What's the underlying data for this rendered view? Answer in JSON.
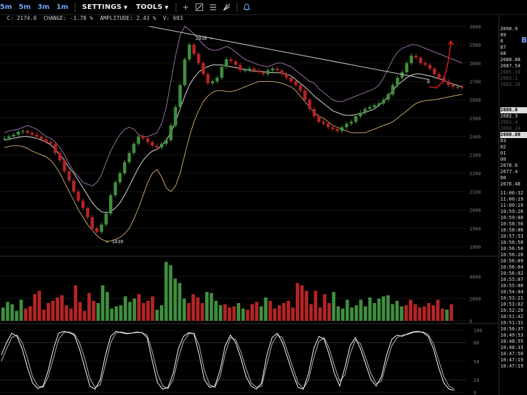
{
  "toolbar": {
    "timeframes": [
      "5m",
      "5m",
      "3m",
      "1m"
    ],
    "settings_label": "SETTINGS",
    "tools_label": "TOOLS"
  },
  "infobar": {
    "close": "C: 2174.0",
    "change": "CHANGE: -1.78 %",
    "amplitude": "AMPLITUDE: 2.43 %",
    "volume": "V: 693"
  },
  "corner_label": "B",
  "orderbook": {
    "asks": [
      "2690.9",
      "89",
      "8",
      "87",
      "68",
      "2688.88",
      "2687.54"
    ],
    "dim_asks": [
      "2685.10",
      "2683.1",
      "2682.16"
    ],
    "mid_top": "2686.0",
    "mids": [
      "2682.3"
    ],
    "dim_mid": [
      "2681.4",
      "2680.14"
    ],
    "mid_hl": "2680.08",
    "bids": [
      "03",
      "02",
      "01",
      "00",
      "2678.0",
      "2677.4",
      "00",
      "2676.48"
    ],
    "trades": [
      "11:00:32",
      "11:00:19",
      "11:00:10",
      "10:59:26",
      "10:59:00",
      "10:58:56",
      "10:58:00",
      "10:57:53",
      "10:56:58",
      "10:56:50",
      "10:56:20",
      "10:56:09",
      "10:56:04",
      "10:56:02",
      "10:55:07",
      "10:55:00",
      "10:54:04",
      "10:53:21",
      "10:53:02",
      "10:52:20",
      "10:51:42",
      "10:51:31",
      "10:50:37",
      "10:49:53",
      "10:48:55",
      "10:48:33",
      "10:47:50",
      "10:47:19",
      "10:47:19"
    ]
  },
  "colors": {
    "up": "#3f8f3f",
    "down": "#b52424",
    "upper_band": "#9a6fa8",
    "mid_band": "#dddddd",
    "lower_band": "#c9a46c",
    "trendline": "#cccccc",
    "forecast": "#d11f1f",
    "stoch_k": "#ffffff",
    "stoch_d": "#bbbbbb",
    "accent": "#6fa8ff"
  },
  "chart_data": [
    {
      "type": "candlestick",
      "title": "",
      "yticks": [
        1800,
        1900,
        2000,
        2100,
        2200,
        2300,
        2400,
        2500,
        2600,
        2700,
        2800,
        2900,
        3000
      ],
      "ylim": [
        1770,
        3020
      ],
      "x_range": [
        0,
        100
      ],
      "annotations": [
        {
          "text": "2938 →",
          "x": 46,
          "y": 2938
        },
        {
          "text": "← 1830",
          "x": 23,
          "y": 1830
        }
      ],
      "trendline": {
        "x": [
          32,
          92
        ],
        "y": [
          3000,
          2710
        ]
      },
      "forecast": {
        "x": [
          92,
          93.5,
          95,
          96,
          96.7
        ],
        "y": [
          2670,
          2665,
          2700,
          2800,
          2920
        ]
      },
      "last_marker": {
        "text": "0",
        "x": 91.5,
        "y": 2700
      },
      "close": [
        2390,
        2400,
        2410,
        2425,
        2430,
        2420,
        2410,
        2400,
        2385,
        2370,
        2360,
        2310,
        2270,
        2210,
        2160,
        2100,
        2050,
        2010,
        1960,
        1900,
        1880,
        1920,
        1980,
        2080,
        2150,
        2200,
        2260,
        2310,
        2360,
        2400,
        2390,
        2370,
        2350,
        2340,
        2360,
        2380,
        2460,
        2560,
        2680,
        2820,
        2900,
        2850,
        2800,
        2740,
        2690,
        2700,
        2720,
        2780,
        2820,
        2810,
        2790,
        2760,
        2760,
        2770,
        2760,
        2750,
        2740,
        2760,
        2770,
        2760,
        2740,
        2720,
        2700,
        2680,
        2650,
        2600,
        2550,
        2510,
        2480,
        2470,
        2450,
        2440,
        2430,
        2450,
        2470,
        2480,
        2510,
        2530,
        2550,
        2560,
        2570,
        2580,
        2600,
        2630,
        2680,
        2720,
        2750,
        2800,
        2840,
        2830,
        2800,
        2790,
        2770,
        2740,
        2720,
        2700,
        2680,
        2670,
        2670,
        2668
      ],
      "upper_band": [
        2420,
        2430,
        2435,
        2440,
        2450,
        2460,
        2450,
        2440,
        2420,
        2400,
        2390,
        2370,
        2340,
        2300,
        2250,
        2210,
        2180,
        2150,
        2140,
        2130,
        2150,
        2190,
        2260,
        2320,
        2370,
        2410,
        2440,
        2450,
        2440,
        2410,
        2400,
        2400,
        2410,
        2420,
        2470,
        2560,
        2700,
        2840,
        2950,
        3000,
        2980,
        2960,
        2930,
        2900,
        2880,
        2870,
        2870,
        2880,
        2890,
        2880,
        2860,
        2840,
        2820,
        2810,
        2800,
        2790,
        2785,
        2780,
        2790,
        2800,
        2800,
        2790,
        2780,
        2760,
        2740,
        2720,
        2700,
        2690,
        2660,
        2640,
        2620,
        2600,
        2590,
        2590,
        2600,
        2610,
        2620,
        2630,
        2640,
        2650,
        2660,
        2680,
        2720,
        2770,
        2820,
        2860,
        2880,
        2890,
        2900,
        2900,
        2890,
        2880,
        2870,
        2860,
        2850,
        2840,
        2830,
        2820,
        2810,
        2800
      ],
      "mid_band": [
        2380,
        2385,
        2390,
        2395,
        2400,
        2400,
        2395,
        2390,
        2380,
        2370,
        2355,
        2330,
        2300,
        2270,
        2230,
        2200,
        2160,
        2120,
        2080,
        2040,
        2010,
        1990,
        1985,
        1990,
        2010,
        2040,
        2080,
        2130,
        2180,
        2230,
        2270,
        2300,
        2320,
        2330,
        2350,
        2380,
        2420,
        2480,
        2550,
        2620,
        2680,
        2720,
        2750,
        2770,
        2780,
        2790,
        2790,
        2790,
        2785,
        2780,
        2775,
        2770,
        2765,
        2760,
        2755,
        2755,
        2752,
        2750,
        2748,
        2748,
        2746,
        2740,
        2730,
        2710,
        2690,
        2670,
        2645,
        2620,
        2600,
        2580,
        2560,
        2540,
        2530,
        2520,
        2515,
        2515,
        2520,
        2525,
        2530,
        2540,
        2550,
        2570,
        2590,
        2620,
        2650,
        2680,
        2700,
        2720,
        2735,
        2740,
        2740,
        2735,
        2730,
        2722,
        2715,
        2705,
        2695,
        2685,
        2678,
        2670
      ],
      "lower_band": [
        2340,
        2345,
        2350,
        2350,
        2345,
        2335,
        2320,
        2310,
        2300,
        2290,
        2270,
        2240,
        2200,
        2150,
        2100,
        2050,
        2000,
        1960,
        1920,
        1890,
        1860,
        1840,
        1830,
        1830,
        1840,
        1850,
        1870,
        1900,
        1950,
        2010,
        2080,
        2150,
        2200,
        2220,
        2180,
        2120,
        2100,
        2130,
        2200,
        2300,
        2400,
        2480,
        2540,
        2590,
        2620,
        2640,
        2650,
        2650,
        2645,
        2645,
        2650,
        2660,
        2670,
        2680,
        2690,
        2700,
        2700,
        2700,
        2700,
        2695,
        2690,
        2680,
        2670,
        2650,
        2620,
        2590,
        2560,
        2530,
        2510,
        2500,
        2480,
        2460,
        2450,
        2440,
        2430,
        2420,
        2420,
        2420,
        2420,
        2430,
        2440,
        2450,
        2460,
        2470,
        2480,
        2500,
        2520,
        2540,
        2560,
        2580,
        2590,
        2595,
        2598,
        2600,
        2605,
        2610,
        2615,
        2620,
        2625,
        2630
      ]
    },
    {
      "type": "bar",
      "title": "",
      "yticks": [
        0,
        2000,
        4000
      ],
      "ylim": [
        0,
        5500
      ],
      "volume": [
        1200,
        1700,
        1500,
        900,
        1900,
        1100,
        1300,
        2400,
        2700,
        1000,
        1600,
        1800,
        2100,
        2300,
        1400,
        1100,
        3200,
        1700,
        900,
        2500,
        1800,
        1600,
        3200,
        2600,
        1100,
        1300,
        1400,
        2200,
        1700,
        2000,
        2400,
        1600,
        1800,
        2200,
        1000,
        1400,
        5300,
        5000,
        3800,
        3400,
        2000,
        1600,
        2400,
        2100,
        1600,
        2600,
        2500,
        1800,
        1400,
        1500,
        1200,
        1300,
        1600,
        1100,
        1000,
        1500,
        1700,
        1300,
        2100,
        1800,
        1100,
        1400,
        1600,
        1800,
        1200,
        3400,
        3200,
        2700,
        1500,
        2700,
        1200,
        2400,
        1600,
        2600,
        1300,
        1100,
        1900,
        1200,
        1400,
        1900,
        1300,
        2100,
        1600,
        2000,
        2200,
        2300,
        1500,
        1800,
        1300,
        1400,
        1900,
        1500,
        1200,
        1300,
        1600,
        1400,
        1900,
        1100,
        1000,
        1500
      ]
    },
    {
      "type": "line",
      "title": "",
      "yticks": [
        0,
        20,
        50,
        80,
        100
      ],
      "ylim": [
        0,
        105
      ],
      "stoch_k": [
        60,
        80,
        95,
        90,
        70,
        40,
        15,
        6,
        10,
        35,
        70,
        95,
        98,
        96,
        92,
        70,
        40,
        10,
        5,
        20,
        60,
        90,
        98,
        96,
        94,
        95,
        97,
        96,
        88,
        50,
        15,
        5,
        8,
        30,
        70,
        90,
        96,
        94,
        60,
        20,
        8,
        10,
        35,
        75,
        92,
        80,
        55,
        25,
        10,
        5,
        15,
        60,
        88,
        95,
        80,
        55,
        30,
        8,
        5,
        30,
        70,
        90,
        85,
        60,
        30,
        10,
        40,
        75,
        88,
        70,
        45,
        20,
        10,
        25,
        60,
        85,
        92,
        90,
        94,
        97,
        98,
        96,
        90,
        70,
        40,
        15,
        5,
        3
      ],
      "stoch_d": [
        50,
        70,
        88,
        92,
        80,
        55,
        25,
        10,
        8,
        25,
        55,
        85,
        96,
        97,
        94,
        80,
        55,
        22,
        8,
        12,
        45,
        80,
        95,
        97,
        95,
        95,
        96,
        96,
        92,
        65,
        30,
        10,
        6,
        20,
        55,
        82,
        94,
        95,
        75,
        35,
        12,
        8,
        25,
        62,
        88,
        85,
        65,
        38,
        15,
        8,
        10,
        45,
        78,
        92,
        88,
        65,
        40,
        15,
        6,
        20,
        55,
        82,
        88,
        70,
        42,
        18,
        28,
        62,
        84,
        78,
        55,
        30,
        14,
        18,
        48,
        75,
        88,
        92,
        93,
        96,
        97,
        97,
        93,
        78,
        52,
        25,
        10,
        5
      ]
    }
  ]
}
